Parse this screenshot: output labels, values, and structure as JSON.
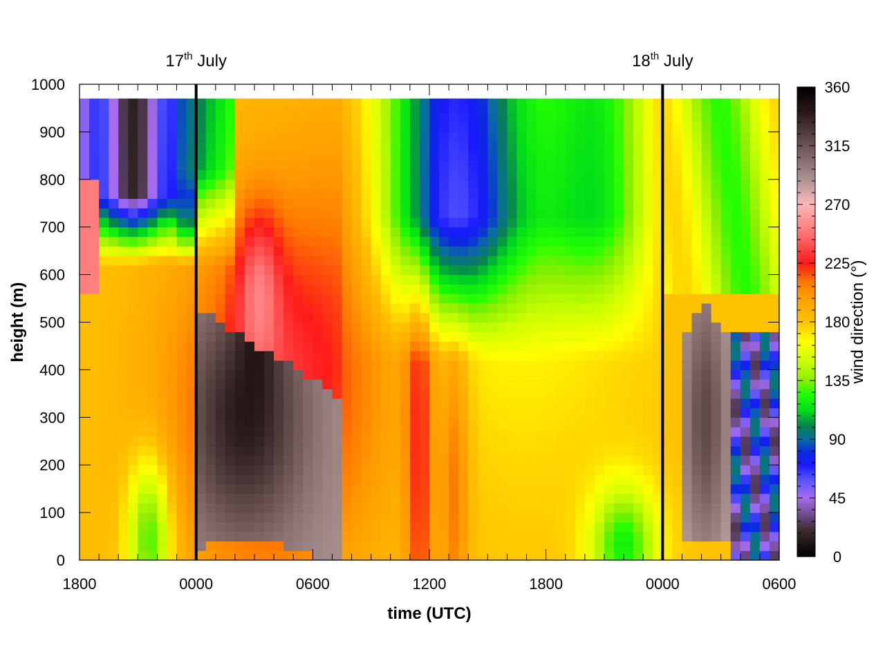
{
  "chart_data": {
    "type": "heatmap",
    "xlabel": "time (UTC)",
    "ylabel": "height (m)",
    "colorbar_label": "wind direction (°)",
    "x_unit": "hours since 1800 UTC 16 July",
    "x_range": [
      0,
      36
    ],
    "y_range": [
      0,
      1000
    ],
    "y_data_top": 970,
    "c_range": [
      0,
      360
    ],
    "x_ticks": [
      {
        "value": 0,
        "label": "1800"
      },
      {
        "value": 6,
        "label": "0000"
      },
      {
        "value": 12,
        "label": "0600"
      },
      {
        "value": 18,
        "label": "1200"
      },
      {
        "value": 24,
        "label": "1800"
      },
      {
        "value": 30,
        "label": "0000"
      },
      {
        "value": 36,
        "label": "0600"
      }
    ],
    "y_ticks": [
      0,
      100,
      200,
      300,
      400,
      500,
      600,
      700,
      800,
      900,
      1000
    ],
    "c_ticks": [
      0,
      45,
      90,
      135,
      180,
      225,
      270,
      315,
      360
    ],
    "date_markers": [
      {
        "value": 6,
        "label": "17",
        "sup": "th",
        "suffix": " July"
      },
      {
        "value": 30,
        "label": "18",
        "sup": "th",
        "suffix": " July"
      }
    ],
    "colormap": [
      [
        0,
        "#000000"
      ],
      [
        20,
        "#3a2c2c"
      ],
      [
        45,
        "#a66cf0"
      ],
      [
        60,
        "#5050ff"
      ],
      [
        70,
        "#1a1aff"
      ],
      [
        80,
        "#0b2ae0"
      ],
      [
        90,
        "#0a6ea0"
      ],
      [
        100,
        "#088050"
      ],
      [
        112,
        "#00dd1a"
      ],
      [
        125,
        "#22ff00"
      ],
      [
        135,
        "#88ee00"
      ],
      [
        150,
        "#ccff00"
      ],
      [
        165,
        "#ffff00"
      ],
      [
        180,
        "#ffc200"
      ],
      [
        200,
        "#ff9a00"
      ],
      [
        210,
        "#ff7a00"
      ],
      [
        225,
        "#ff1a1a"
      ],
      [
        245,
        "#ff6a6a"
      ],
      [
        270,
        "#ffb8b8"
      ],
      [
        290,
        "#a89090"
      ],
      [
        315,
        "#6c5454"
      ],
      [
        340,
        "#2a1a1a"
      ],
      [
        360,
        "#000000"
      ]
    ]
  }
}
